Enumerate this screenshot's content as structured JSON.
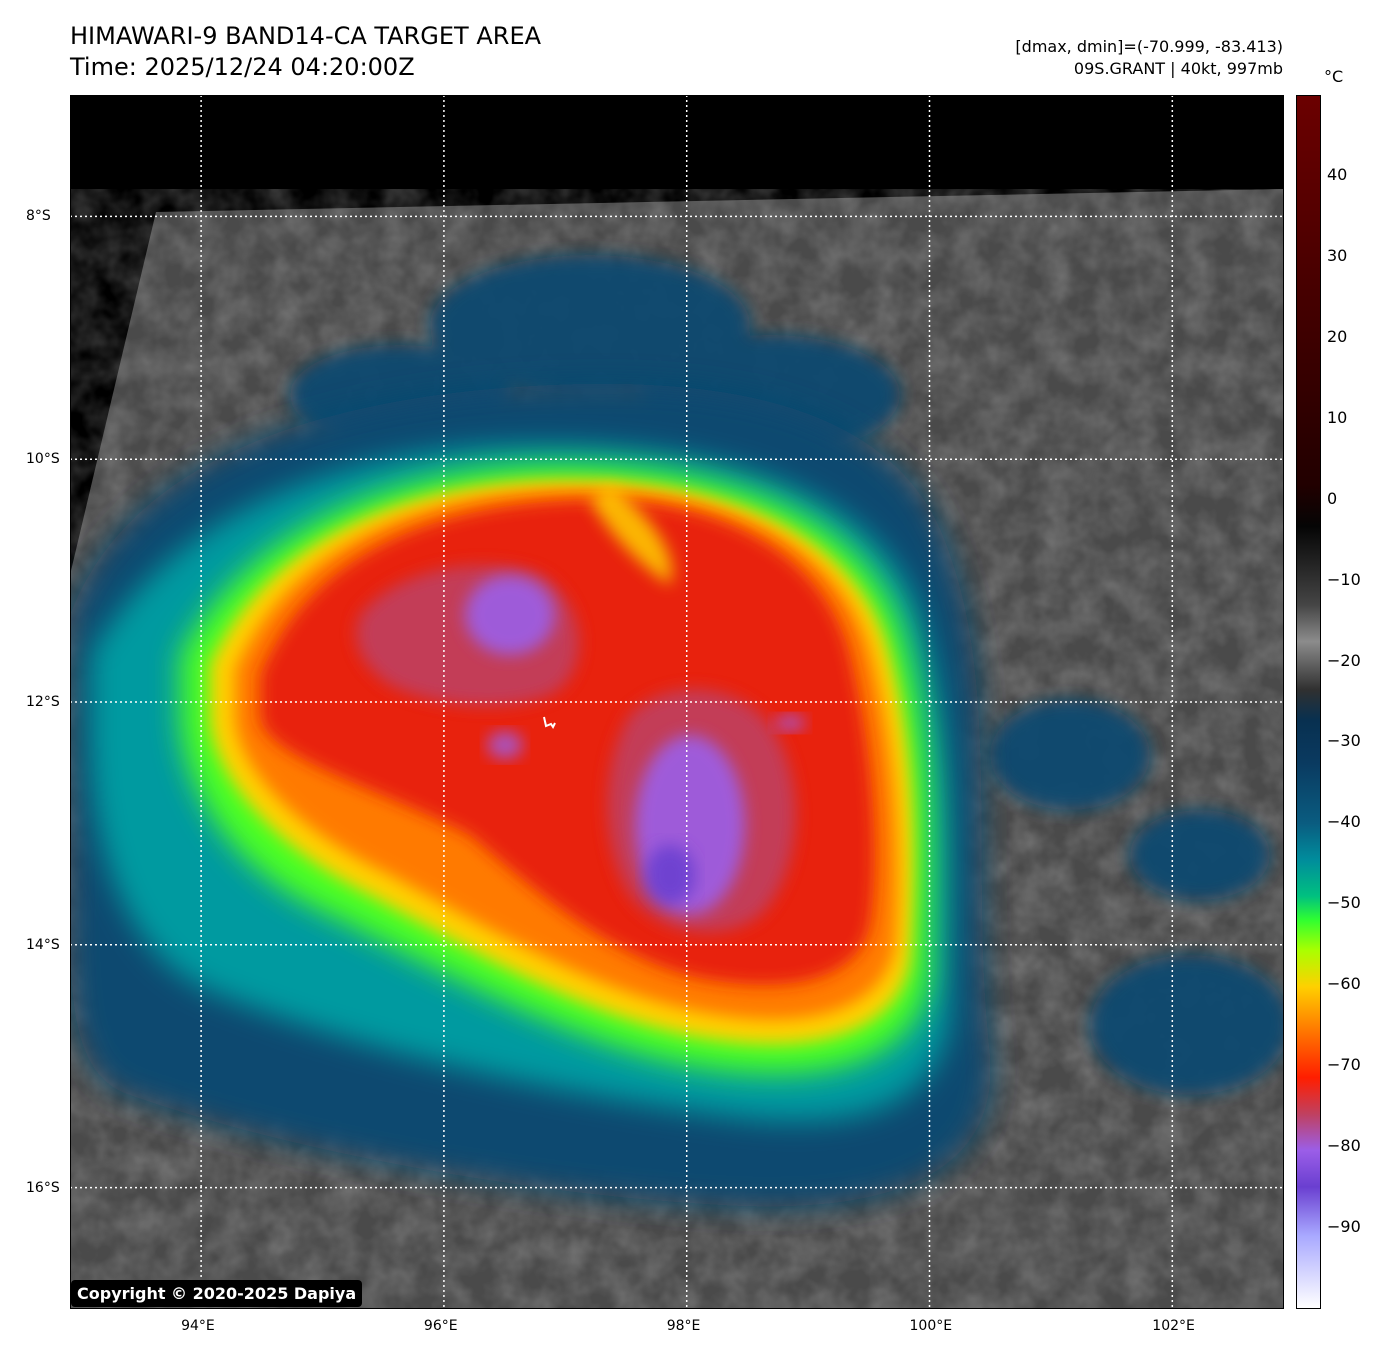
{
  "header": {
    "title_line1": "HIMAWARI-9 BAND14-CA TARGET AREA",
    "title_line2": "Time: 2025/12/24 04:20:00Z",
    "info_line1": "[dmax, dmin]=(-70.999, -83.413)",
    "info_line2": "09S.GRANT | 40kt, 997mb"
  },
  "map": {
    "lat_labels": [
      "8°S",
      "10°S",
      "12°S",
      "14°S",
      "16°S"
    ],
    "lon_labels": [
      "94°E",
      "96°E",
      "98°E",
      "100°E",
      "102°E"
    ],
    "lat_values": [
      -8,
      -10,
      -12,
      -14,
      -16
    ],
    "lon_values": [
      94,
      96,
      98,
      100,
      102
    ],
    "lon_range": [
      92.92,
      102.92
    ],
    "lat_range": [
      -7.0,
      -17.0
    ],
    "gridline_color": "#ffffff",
    "gridline_style": "dotted"
  },
  "colorbar": {
    "unit": "°C",
    "ticks": [
      "40",
      "30",
      "20",
      "10",
      "0",
      "−10",
      "−20",
      "−30",
      "−40",
      "−50",
      "−60",
      "−70",
      "−80",
      "−90"
    ],
    "tick_values": [
      40,
      30,
      20,
      10,
      0,
      -10,
      -20,
      -30,
      -40,
      -50,
      -60,
      -70,
      -80,
      -90
    ],
    "range": [
      -100,
      50
    ]
  },
  "copyright": "Copyright © 2020-2025 Dapiya",
  "colors": {
    "cold_top_purple": "#9b5ee8",
    "cloud_red": "#ff1e00",
    "cloud_orange": "#ff7a00",
    "cloud_yellow": "#ffd000",
    "cloud_green": "#30ff30",
    "cloud_cyan": "#00a0a8",
    "cloud_blue": "#0a4a70",
    "surface_gray": "#4a4a4a",
    "space_black": "#000000"
  }
}
